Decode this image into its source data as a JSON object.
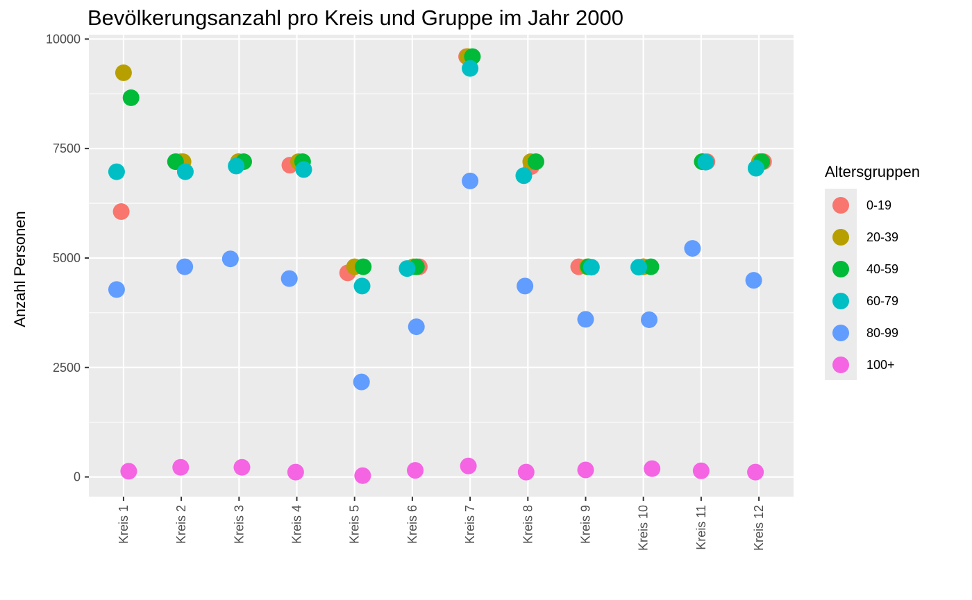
{
  "chart_data": {
    "type": "scatter",
    "title": "Bevölkerungsanzahl pro Kreis und Gruppe im Jahr 2000",
    "xlabel": "",
    "ylabel": "Anzahl Personen",
    "ylim": [
      -450,
      10100
    ],
    "yticks": [
      0,
      2500,
      5000,
      7500,
      10000
    ],
    "categories": [
      "Kreis 1",
      "Kreis 2",
      "Kreis 3",
      "Kreis 4",
      "Kreis 5",
      "Kreis 6",
      "Kreis 7",
      "Kreis 8",
      "Kreis 9",
      "Kreis 10",
      "Kreis 11",
      "Kreis 12"
    ],
    "legend": {
      "title": "Altersgruppen",
      "position": "right"
    },
    "grid": true,
    "series": [
      {
        "name": "0-19",
        "color": "#F8766D",
        "points": [
          [
            1,
            6060
          ],
          [
            2,
            7200
          ],
          [
            3,
            7200
          ],
          [
            4,
            7120
          ],
          [
            5,
            4660
          ],
          [
            6,
            4800
          ],
          [
            7,
            9600
          ],
          [
            8,
            7090
          ],
          [
            9,
            4800
          ],
          [
            10,
            4800
          ],
          [
            11,
            7200
          ],
          [
            12,
            7200
          ]
        ]
      },
      {
        "name": "20-39",
        "color": "#B79F00",
        "points": [
          [
            1,
            9230
          ],
          [
            2,
            7200
          ],
          [
            3,
            7200
          ],
          [
            4,
            7200
          ],
          [
            5,
            4800
          ],
          [
            6,
            4800
          ],
          [
            7,
            9600
          ],
          [
            8,
            7200
          ],
          [
            9,
            4800
          ],
          [
            10,
            4800
          ],
          [
            11,
            7200
          ],
          [
            12,
            7200
          ]
        ]
      },
      {
        "name": "40-59",
        "color": "#00BA38",
        "points": [
          [
            1,
            8660
          ],
          [
            2,
            7200
          ],
          [
            3,
            7200
          ],
          [
            4,
            7200
          ],
          [
            5,
            4800
          ],
          [
            6,
            4800
          ],
          [
            7,
            9600
          ],
          [
            8,
            7200
          ],
          [
            9,
            4800
          ],
          [
            10,
            4800
          ],
          [
            11,
            7200
          ],
          [
            12,
            7200
          ]
        ]
      },
      {
        "name": "60-79",
        "color": "#00BFC4",
        "points": [
          [
            1,
            6970
          ],
          [
            2,
            6970
          ],
          [
            3,
            7100
          ],
          [
            4,
            7020
          ],
          [
            5,
            4360
          ],
          [
            6,
            4760
          ],
          [
            7,
            9330
          ],
          [
            8,
            6880
          ],
          [
            9,
            4790
          ],
          [
            10,
            4790
          ],
          [
            11,
            7190
          ],
          [
            12,
            7050
          ]
        ]
      },
      {
        "name": "80-99",
        "color": "#619CFF",
        "points": [
          [
            1,
            4280
          ],
          [
            2,
            4800
          ],
          [
            3,
            4980
          ],
          [
            4,
            4530
          ],
          [
            5,
            2170
          ],
          [
            6,
            3430
          ],
          [
            7,
            6760
          ],
          [
            8,
            4360
          ],
          [
            9,
            3600
          ],
          [
            10,
            3590
          ],
          [
            11,
            5220
          ],
          [
            12,
            4490
          ]
        ]
      },
      {
        "name": "100+",
        "color": "#F564E3",
        "points": [
          [
            1,
            130
          ],
          [
            2,
            220
          ],
          [
            3,
            220
          ],
          [
            4,
            110
          ],
          [
            5,
            30
          ],
          [
            6,
            150
          ],
          [
            7,
            250
          ],
          [
            8,
            110
          ],
          [
            9,
            160
          ],
          [
            10,
            190
          ],
          [
            11,
            140
          ],
          [
            12,
            110
          ]
        ]
      }
    ]
  }
}
